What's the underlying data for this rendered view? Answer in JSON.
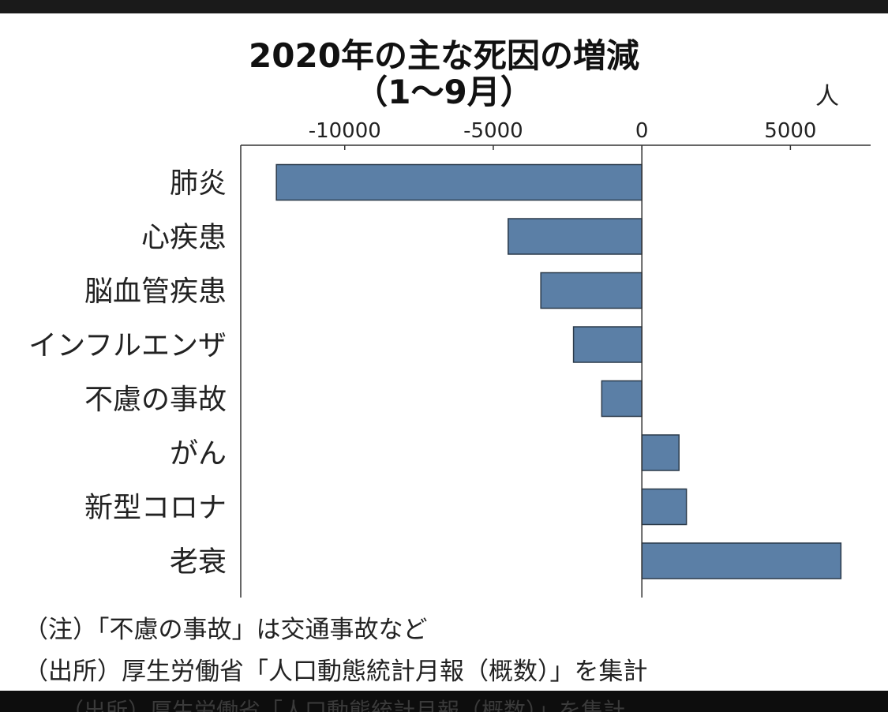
{
  "title": {
    "line1": "2020年の主な死因の増減",
    "line2": "（1〜9月）"
  },
  "chart_data": {
    "type": "bar",
    "orientation": "horizontal",
    "unit": "人",
    "categories": [
      "肺炎",
      "心疾患",
      "脳血管疾患",
      "インフルエンザ",
      "不慮の事故",
      "がん",
      "新型コロナ",
      "老衰"
    ],
    "values": [
      -12300,
      -4500,
      -3400,
      -2300,
      -1350,
      1250,
      1500,
      6700
    ],
    "xlim": [
      -13500,
      7700
    ],
    "xticks": [
      -10000,
      -5000,
      0,
      5000
    ],
    "xtick_labels": [
      "-10000",
      "-5000",
      "0",
      "5000"
    ],
    "bar_color": "#5b7fa6",
    "grid": false
  },
  "notes": {
    "note": "（注）「不慮の事故」は交通事故など",
    "source": "（出所）厚生労働省「人口動態統計月報（概数）」を集計"
  }
}
